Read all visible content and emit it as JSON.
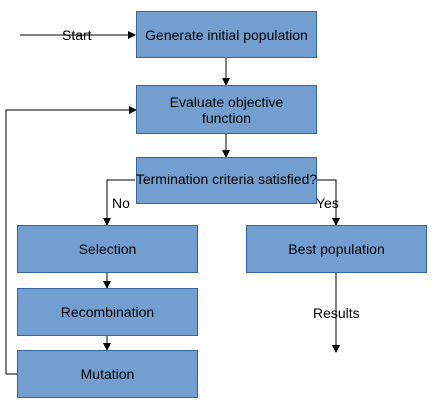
{
  "diagram": {
    "box_fill": "#729fcf",
    "box_border": "#3465a4",
    "line_color": "#000000",
    "nodes": {
      "generate": "Generate initial population",
      "evaluate": "Evaluate objective function",
      "termination": "Termination criteria satisfied?",
      "selection": "Selection",
      "best": "Best population",
      "recombination": "Recombination",
      "mutation": "Mutation"
    },
    "labels": {
      "start": "Start",
      "no": "No",
      "yes": "Yes",
      "results": "Results"
    }
  }
}
